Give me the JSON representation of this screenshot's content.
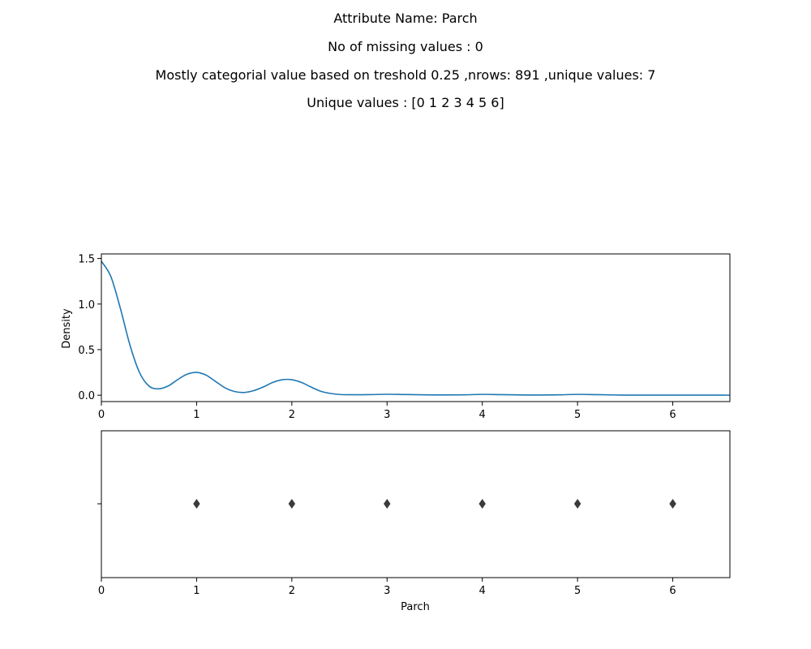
{
  "header": {
    "line1": "Attribute Name: Parch",
    "line2": "No of missing values : 0",
    "line3": "Mostly categorial value based on treshold 0.25 ,nrows: 891 ,unique values: 7",
    "line4": "Unique values : [0 1 2 3 4 5 6]"
  },
  "chart_data": [
    {
      "type": "line",
      "ylabel": "Density",
      "xlabel": "",
      "xlim": [
        0,
        6.6
      ],
      "ylim": [
        -0.07,
        1.55
      ],
      "xticks": [
        "0",
        "1",
        "2",
        "3",
        "4",
        "5",
        "6"
      ],
      "yticks": [
        "0.0",
        "0.5",
        "1.0",
        "1.5"
      ],
      "color": "#1f77b4",
      "x": [
        0,
        0.1,
        0.2,
        0.3,
        0.4,
        0.5,
        0.6,
        0.7,
        0.8,
        0.9,
        1.0,
        1.1,
        1.2,
        1.3,
        1.4,
        1.5,
        1.6,
        1.7,
        1.8,
        1.9,
        2.0,
        2.1,
        2.2,
        2.3,
        2.4,
        2.5,
        2.6,
        2.8,
        3.0,
        3.2,
        3.5,
        3.8,
        4.0,
        4.2,
        4.5,
        4.8,
        5.0,
        5.2,
        5.5,
        5.8,
        6.0,
        6.3,
        6.6
      ],
      "y": [
        1.47,
        1.3,
        0.95,
        0.55,
        0.25,
        0.1,
        0.07,
        0.1,
        0.17,
        0.23,
        0.25,
        0.22,
        0.15,
        0.08,
        0.04,
        0.03,
        0.05,
        0.09,
        0.14,
        0.17,
        0.17,
        0.14,
        0.09,
        0.045,
        0.02,
        0.008,
        0.005,
        0.006,
        0.01,
        0.007,
        0.003,
        0.004,
        0.009,
        0.006,
        0.002,
        0.004,
        0.009,
        0.006,
        0.001,
        0.001,
        0.001,
        0.001,
        0.0
      ]
    },
    {
      "type": "scatter",
      "xlabel": "Parch",
      "ylabel": "",
      "xlim": [
        0,
        6.6
      ],
      "xticks": [
        "0",
        "1",
        "2",
        "3",
        "4",
        "5",
        "6"
      ],
      "outliers": [
        1,
        2,
        3,
        4,
        5,
        6
      ],
      "color": "#3b3b3b"
    }
  ]
}
